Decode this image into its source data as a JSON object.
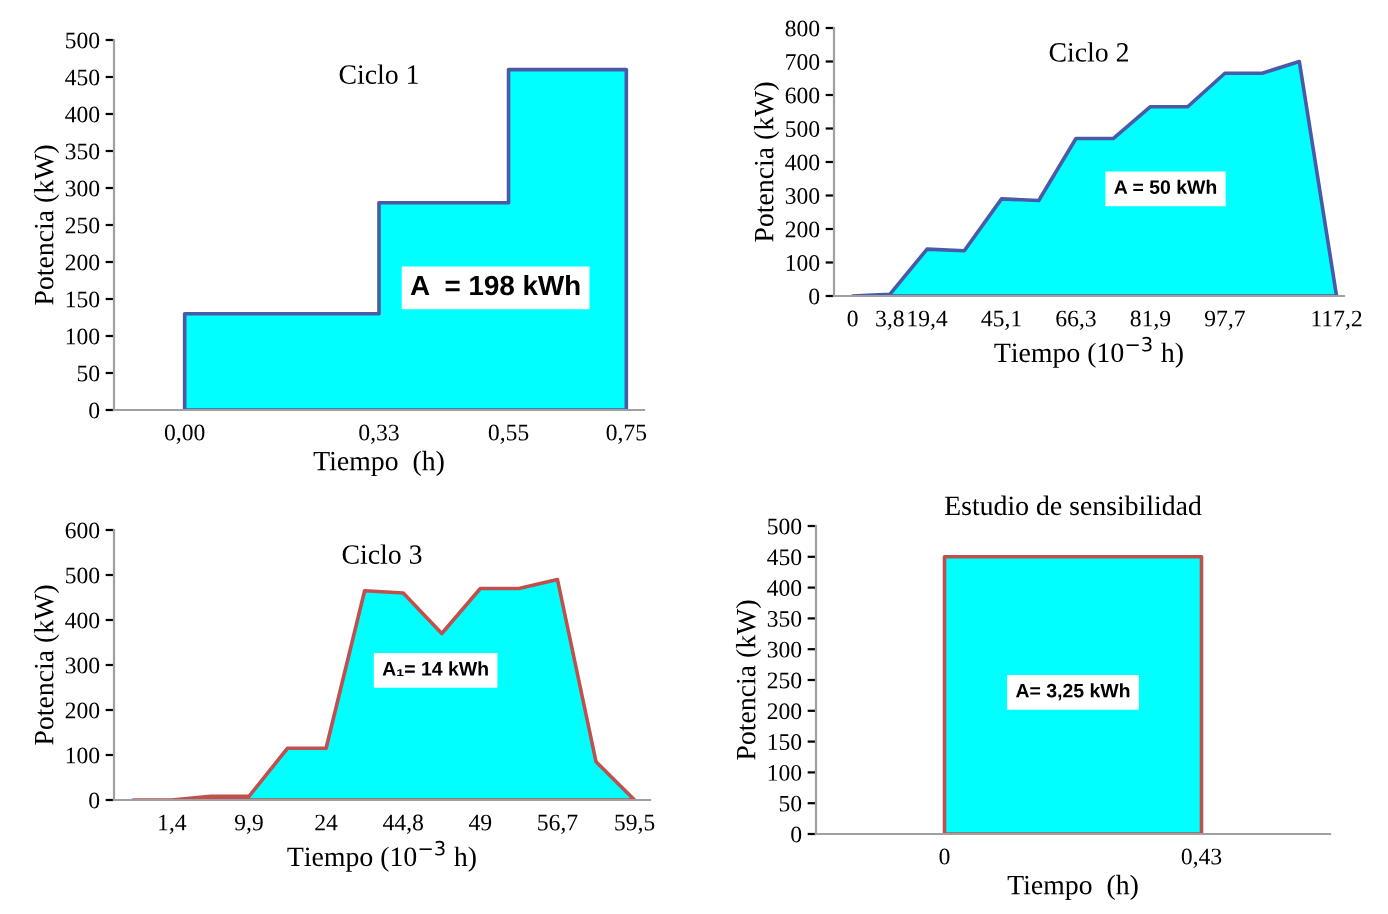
{
  "chart_data": [
    {
      "type": "area",
      "title": "Ciclo 1",
      "xlabel": "Tiempo  (h)",
      "ylabel": "Potencia (kW)",
      "x": [
        0,
        0,
        0.33,
        0.33,
        0.55,
        0.55,
        0.75,
        0.75
      ],
      "xlim": [
        -0.12,
        0.78
      ],
      "xticks": [
        {
          "value": 0,
          "label": "0,00"
        },
        {
          "value": 0.33,
          "label": "0,33"
        },
        {
          "value": 0.55,
          "label": "0,55"
        },
        {
          "value": 0.75,
          "label": "0,75"
        }
      ],
      "series": [
        {
          "color": "#00ffff",
          "values": [
            0,
            130,
            130,
            280,
            280,
            460,
            460,
            0
          ]
        }
      ],
      "ylim": [
        0,
        500
      ],
      "yticks": [
        0,
        50,
        100,
        150,
        200,
        250,
        300,
        350,
        400,
        450,
        500
      ],
      "annotations": [
        "A  = 198 kWh"
      ]
    },
    {
      "type": "area",
      "title": "Ciclo 2",
      "xlabel": "Tiempo (10$^{−3}$ h)",
      "ylabel": "Potencia (kW)",
      "categories": [
        "0",
        "3,8",
        "19,4",
        null,
        "45,1",
        null,
        "66,3",
        null,
        "81,9",
        null,
        "97,7",
        null,
        null,
        "117,2"
      ],
      "series": [
        {
          "color": "#00ffff",
          "values": [
            0,
            5,
            140,
            135,
            290,
            285,
            470,
            470,
            565,
            565,
            665,
            665,
            700,
            0
          ]
        }
      ],
      "ylim": [
        0,
        800
      ],
      "yticks": [
        0,
        100,
        200,
        300,
        400,
        500,
        600,
        700,
        800
      ],
      "annotations": [
        "A = 50 kWh"
      ]
    },
    {
      "type": "area",
      "title": "Ciclo 3",
      "xlabel": "Tiempo (10$^{−3}$ h)",
      "ylabel": "Potencia (kW)",
      "categories": [
        null,
        "1,4",
        null,
        "9,9",
        null,
        "24",
        null,
        "44,8",
        null,
        "49",
        null,
        "56,7",
        null,
        "59,5"
      ],
      "series": [
        {
          "color": "#00ffff",
          "values": [
            0,
            0,
            8,
            8,
            115,
            115,
            465,
            460,
            370,
            470,
            470,
            490,
            85,
            0
          ]
        }
      ],
      "ylim": [
        0,
        600
      ],
      "yticks": [
        0,
        100,
        200,
        300,
        400,
        500,
        600
      ],
      "annotations": [
        "A₁= 14 kWh"
      ]
    },
    {
      "type": "area",
      "title": "Estudio de sensibilidad",
      "xlabel": "Tiempo  (h)",
      "ylabel": "Potencia (kW)",
      "categories": [
        "0",
        "0,43"
      ],
      "series": [
        {
          "color": "#00ffff",
          "values": [
            450,
            450
          ]
        }
      ],
      "ylim": [
        0,
        500
      ],
      "yticks": [
        0,
        50,
        100,
        150,
        200,
        250,
        300,
        350,
        400,
        450,
        500
      ],
      "annotations": [
        "A= 3,25 kWh"
      ]
    }
  ]
}
